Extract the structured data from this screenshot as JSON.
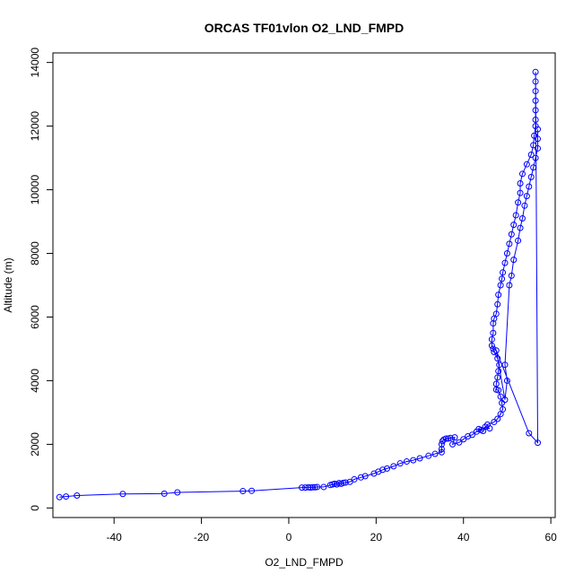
{
  "chart_data": {
    "type": "scatter",
    "title": "ORCAS TF01vlon O2_LND_FMPD",
    "xlabel": "O2_LND_FMPD",
    "ylabel": "Altitude (m)",
    "xlim": [
      -54,
      61
    ],
    "ylim": [
      -300,
      14300
    ],
    "xticks": [
      -40,
      -20,
      0,
      20,
      40,
      60
    ],
    "yticks": [
      0,
      2000,
      4000,
      6000,
      8000,
      10000,
      12000,
      14000
    ],
    "grid": false,
    "color": "#0000ff",
    "marker": "open-circle",
    "series": [
      {
        "points": [
          [
            -52.5,
            340
          ],
          [
            -51.0,
            360
          ],
          [
            -48.5,
            390
          ],
          [
            -38.0,
            440
          ],
          [
            -28.5,
            450
          ],
          [
            -25.5,
            490
          ],
          [
            -10.5,
            530
          ],
          [
            -8.5,
            540
          ],
          [
            3.0,
            640
          ],
          [
            3.8,
            640
          ],
          [
            4.5,
            650
          ],
          [
            5.0,
            640
          ],
          [
            5.5,
            650
          ],
          [
            6.0,
            650
          ],
          [
            6.5,
            660
          ],
          [
            8.0,
            660
          ],
          [
            9.5,
            720
          ],
          [
            10.0,
            740
          ],
          [
            10.5,
            760
          ],
          [
            11.0,
            740
          ],
          [
            11.5,
            780
          ],
          [
            12.0,
            760
          ],
          [
            12.5,
            790
          ],
          [
            13.0,
            800
          ],
          [
            14.0,
            820
          ],
          [
            15.0,
            900
          ],
          [
            16.5,
            960
          ],
          [
            17.5,
            1000
          ],
          [
            19.5,
            1080
          ],
          [
            20.5,
            1140
          ],
          [
            21.5,
            1200
          ],
          [
            22.5,
            1240
          ],
          [
            24.0,
            1310
          ],
          [
            25.5,
            1400
          ],
          [
            27.0,
            1460
          ],
          [
            28.5,
            1500
          ],
          [
            30.0,
            1560
          ],
          [
            32.0,
            1640
          ],
          [
            33.5,
            1700
          ],
          [
            35.0,
            1750
          ],
          [
            35.0,
            1850
          ],
          [
            35.0,
            2000
          ],
          [
            35.2,
            2100
          ],
          [
            35.5,
            2150
          ],
          [
            36.0,
            2180
          ],
          [
            37.0,
            2200
          ],
          [
            36.5,
            2180
          ],
          [
            38.0,
            2220
          ],
          [
            37.5,
            2000
          ],
          [
            39.0,
            2060
          ],
          [
            40.0,
            2160
          ],
          [
            41.0,
            2250
          ],
          [
            42.0,
            2300
          ],
          [
            43.0,
            2400
          ],
          [
            44.0,
            2450
          ],
          [
            45.0,
            2550
          ],
          [
            46.0,
            2500
          ],
          [
            43.5,
            2480
          ],
          [
            44.5,
            2420
          ],
          [
            45.5,
            2620
          ],
          [
            47.0,
            2700
          ],
          [
            47.8,
            2800
          ],
          [
            48.5,
            2950
          ],
          [
            49.0,
            3100
          ],
          [
            48.8,
            3300
          ],
          [
            48.5,
            3500
          ],
          [
            48.0,
            3700
          ],
          [
            47.5,
            3720
          ],
          [
            47.5,
            3900
          ],
          [
            47.8,
            4100
          ],
          [
            48.0,
            4300
          ],
          [
            48.2,
            4500
          ],
          [
            47.8,
            4700
          ],
          [
            47.0,
            4900
          ],
          [
            46.8,
            5000
          ],
          [
            46.5,
            5100
          ],
          [
            46.5,
            5300
          ],
          [
            46.8,
            5500
          ],
          [
            46.8,
            5800
          ],
          [
            47.0,
            5950
          ],
          [
            47.5,
            6100
          ],
          [
            47.8,
            6400
          ],
          [
            48.0,
            6700
          ],
          [
            48.5,
            7000
          ],
          [
            48.8,
            7200
          ],
          [
            49.0,
            7400
          ],
          [
            49.5,
            7700
          ],
          [
            50.0,
            8000
          ],
          [
            50.5,
            8300
          ],
          [
            51.0,
            8600
          ],
          [
            51.5,
            8900
          ],
          [
            52.0,
            9200
          ],
          [
            52.5,
            9600
          ],
          [
            53.0,
            9900
          ],
          [
            53.0,
            10200
          ],
          [
            53.5,
            10500
          ],
          [
            54.5,
            10800
          ],
          [
            55.5,
            11100
          ],
          [
            56.0,
            11400
          ],
          [
            56.2,
            11700
          ],
          [
            56.5,
            12000
          ],
          [
            56.5,
            12200
          ],
          [
            56.5,
            12500
          ],
          [
            56.5,
            12800
          ],
          [
            56.5,
            13100
          ],
          [
            56.5,
            13400
          ],
          [
            56.5,
            13700
          ],
          [
            57.0,
            2050
          ],
          [
            55.0,
            2350
          ],
          [
            47.5,
            4950
          ],
          [
            49.5,
            3400
          ],
          [
            50.0,
            4000
          ],
          [
            49.5,
            4500
          ],
          [
            50.5,
            7000
          ],
          [
            51.0,
            7300
          ],
          [
            51.5,
            7800
          ],
          [
            52.5,
            8400
          ],
          [
            53.0,
            8800
          ],
          [
            53.5,
            9100
          ],
          [
            54.0,
            9500
          ],
          [
            54.5,
            9800
          ],
          [
            55.0,
            10100
          ],
          [
            55.5,
            10400
          ],
          [
            56.0,
            10700
          ],
          [
            56.5,
            11000
          ],
          [
            57.0,
            11300
          ],
          [
            57.0,
            11600
          ],
          [
            57.0,
            11900
          ]
        ]
      }
    ]
  }
}
